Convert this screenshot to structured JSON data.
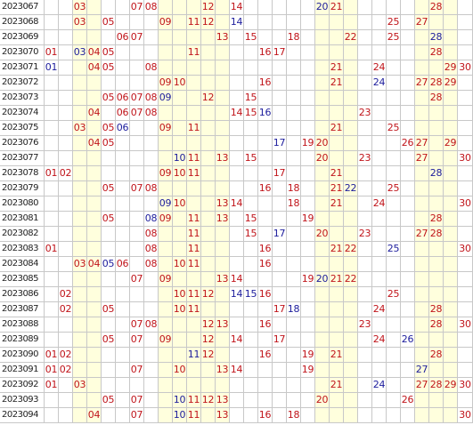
{
  "colors": {
    "red": "#c0141a",
    "blue": "#1c1c9c",
    "cream": "#ffffdd",
    "white": "#ffffff",
    "grid_line": "#c8c8c8",
    "period_text": "#222222"
  },
  "shaded_columns": [
    3,
    4,
    9,
    10,
    11,
    12,
    13,
    20,
    21,
    22,
    27,
    28,
    29
  ],
  "rows": [
    {
      "period": "2023067",
      "red": [
        3,
        7,
        8,
        12,
        14,
        21,
        28
      ],
      "blue": [
        20
      ]
    },
    {
      "period": "2023068",
      "red": [
        3,
        5,
        9,
        11,
        12,
        25,
        27
      ],
      "blue": [
        14
      ]
    },
    {
      "period": "2023069",
      "red": [
        6,
        7,
        13,
        15,
        18,
        22,
        25
      ],
      "blue": [
        28
      ]
    },
    {
      "period": "2023070",
      "red": [
        1,
        4,
        5,
        11,
        16,
        17,
        28
      ],
      "blue": [
        3
      ]
    },
    {
      "period": "2023071",
      "red": [
        4,
        5,
        8,
        21,
        24,
        29,
        30
      ],
      "blue": [
        1
      ]
    },
    {
      "period": "2023072",
      "red": [
        9,
        10,
        16,
        21,
        27,
        28,
        29
      ],
      "blue": [
        24
      ]
    },
    {
      "period": "2023073",
      "red": [
        5,
        6,
        7,
        8,
        12,
        15,
        28
      ],
      "blue": [
        9
      ]
    },
    {
      "period": "2023074",
      "red": [
        4,
        6,
        7,
        8,
        14,
        15,
        23
      ],
      "blue": [
        16
      ]
    },
    {
      "period": "2023075",
      "red": [
        3,
        5,
        9,
        11,
        21,
        25
      ],
      "blue": [
        6
      ]
    },
    {
      "period": "2023076",
      "red": [
        4,
        5,
        19,
        20,
        26,
        27,
        29
      ],
      "blue": [
        17
      ]
    },
    {
      "period": "2023077",
      "red": [
        11,
        13,
        15,
        20,
        23,
        27,
        30
      ],
      "blue": [
        10
      ]
    },
    {
      "period": "2023078",
      "red": [
        1,
        2,
        9,
        10,
        11,
        17,
        21
      ],
      "blue": [
        28
      ]
    },
    {
      "period": "2023079",
      "red": [
        5,
        7,
        8,
        16,
        18,
        21,
        25
      ],
      "blue": [
        22
      ]
    },
    {
      "period": "2023080",
      "red": [
        10,
        13,
        14,
        18,
        21,
        24,
        30
      ],
      "blue": [
        9
      ]
    },
    {
      "period": "2023081",
      "red": [
        5,
        9,
        11,
        13,
        15,
        19,
        28
      ],
      "blue": [
        8
      ]
    },
    {
      "period": "2023082",
      "red": [
        8,
        11,
        15,
        20,
        23,
        27,
        28
      ],
      "blue": [
        17
      ]
    },
    {
      "period": "2023083",
      "red": [
        1,
        8,
        11,
        16,
        21,
        22,
        30
      ],
      "blue": [
        25
      ]
    },
    {
      "period": "2023084",
      "red": [
        3,
        4,
        6,
        8,
        10,
        11,
        16
      ],
      "blue": [
        5
      ]
    },
    {
      "period": "2023085",
      "red": [
        7,
        9,
        13,
        14,
        19,
        21,
        22
      ],
      "blue": [
        20
      ]
    },
    {
      "period": "2023086",
      "red": [
        2,
        10,
        11,
        12,
        16,
        25
      ],
      "blue": [
        14,
        15
      ]
    },
    {
      "period": "2023087",
      "red": [
        2,
        5,
        10,
        11,
        17,
        24,
        28
      ],
      "blue": [
        18
      ]
    },
    {
      "period": "2023088",
      "red": [
        7,
        8,
        12,
        13,
        16,
        23,
        28,
        30
      ],
      "blue": []
    },
    {
      "period": "2023089",
      "red": [
        5,
        7,
        9,
        12,
        14,
        17,
        24
      ],
      "blue": [
        26
      ]
    },
    {
      "period": "2023090",
      "red": [
        1,
        2,
        12,
        16,
        19,
        21,
        28
      ],
      "blue": [
        11
      ]
    },
    {
      "period": "2023091",
      "red": [
        1,
        2,
        7,
        10,
        13,
        14,
        19
      ],
      "blue": [
        27
      ]
    },
    {
      "period": "2023092",
      "red": [
        1,
        3,
        21,
        27,
        28,
        29,
        30
      ],
      "blue": [
        24
      ]
    },
    {
      "period": "2023093",
      "red": [
        5,
        7,
        11,
        12,
        13,
        20,
        26
      ],
      "blue": [
        10
      ]
    },
    {
      "period": "2023094",
      "red": [
        4,
        7,
        11,
        13,
        16,
        18,
        30
      ],
      "blue": [
        10
      ]
    }
  ]
}
